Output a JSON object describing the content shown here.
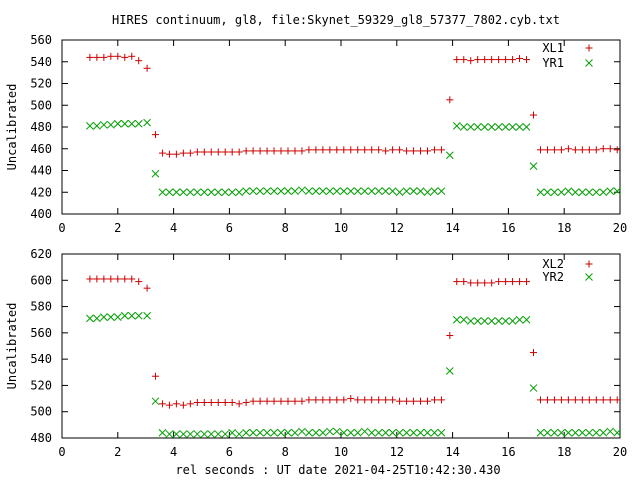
{
  "figure": {
    "title": "HIRES continuum, gl8, file:Skynet_59329_gl8_57377_7802.cyb.txt",
    "xlabel": "rel seconds : UT date 2021-04-25T10:42:30.430"
  },
  "colors": {
    "plus": "#cc0000",
    "cross": "#00a000",
    "axis": "#000000"
  },
  "chart_data": [
    {
      "type": "scatter",
      "ylabel": "Uncalibrated",
      "xlim": [
        0,
        20
      ],
      "ylim": [
        400,
        560
      ],
      "xticks": [
        "0",
        "2",
        "4",
        "6",
        "8",
        "10",
        "12",
        "14",
        "16",
        "18",
        "20"
      ],
      "yticks": [
        "400",
        "420",
        "440",
        "460",
        "480",
        "500",
        "520",
        "540",
        "560"
      ],
      "legend_position": "top-right",
      "series": [
        {
          "name": "XL1",
          "marker": "plus",
          "x": [
            1.0,
            1.25,
            1.5,
            1.75,
            2.0,
            2.25,
            2.5,
            2.75,
            3.05,
            3.35,
            3.6,
            3.85,
            4.1,
            4.35,
            4.6,
            4.85,
            5.1,
            5.35,
            5.6,
            5.85,
            6.1,
            6.35,
            6.6,
            6.85,
            7.1,
            7.35,
            7.6,
            7.85,
            8.1,
            8.35,
            8.6,
            8.85,
            9.1,
            9.35,
            9.6,
            9.85,
            10.1,
            10.35,
            10.6,
            10.85,
            11.1,
            11.35,
            11.6,
            11.85,
            12.1,
            12.35,
            12.6,
            12.85,
            13.1,
            13.35,
            13.6,
            13.9,
            14.15,
            14.4,
            14.65,
            14.9,
            15.15,
            15.4,
            15.65,
            15.9,
            16.15,
            16.4,
            16.65,
            16.9,
            17.15,
            17.4,
            17.65,
            17.9,
            18.15,
            18.4,
            18.65,
            18.9,
            19.15,
            19.4,
            19.65,
            19.9
          ],
          "y": [
            544,
            544,
            544,
            545,
            545,
            544,
            545,
            541,
            534,
            473,
            456,
            455,
            455,
            456,
            456,
            457,
            457,
            457,
            457,
            457,
            457,
            457,
            458,
            458,
            458,
            458,
            458,
            458,
            458,
            458,
            458,
            459,
            459,
            459,
            459,
            459,
            459,
            459,
            459,
            459,
            459,
            459,
            458,
            459,
            459,
            458,
            458,
            458,
            458,
            459,
            459,
            505,
            542,
            542,
            541,
            542,
            542,
            542,
            542,
            542,
            542,
            543,
            542,
            491,
            459,
            459,
            459,
            459,
            460,
            459,
            459,
            459,
            459,
            460,
            460,
            459
          ]
        },
        {
          "name": "YR1",
          "marker": "cross",
          "x": [
            1.0,
            1.25,
            1.5,
            1.75,
            2.0,
            2.25,
            2.5,
            2.75,
            3.05,
            3.35,
            3.6,
            3.85,
            4.1,
            4.35,
            4.6,
            4.85,
            5.1,
            5.35,
            5.6,
            5.85,
            6.1,
            6.35,
            6.6,
            6.85,
            7.1,
            7.35,
            7.6,
            7.85,
            8.1,
            8.35,
            8.6,
            8.85,
            9.1,
            9.35,
            9.6,
            9.85,
            10.1,
            10.35,
            10.6,
            10.85,
            11.1,
            11.35,
            11.6,
            11.85,
            12.1,
            12.35,
            12.6,
            12.85,
            13.1,
            13.35,
            13.6,
            13.9,
            14.15,
            14.4,
            14.65,
            14.9,
            15.15,
            15.4,
            15.65,
            15.9,
            16.15,
            16.4,
            16.65,
            16.9,
            17.15,
            17.4,
            17.65,
            17.9,
            18.15,
            18.4,
            18.65,
            18.9,
            19.15,
            19.4,
            19.65,
            19.9
          ],
          "y": [
            481,
            481,
            482,
            482,
            483,
            483,
            483,
            483,
            484,
            437,
            420,
            420,
            420,
            420,
            420,
            420,
            420,
            420,
            420,
            420,
            420,
            420,
            421,
            421,
            421,
            421,
            421,
            421,
            421,
            421,
            422,
            421,
            421,
            421,
            421,
            421,
            421,
            421,
            421,
            421,
            421,
            421,
            421,
            421,
            420,
            421,
            421,
            421,
            420,
            421,
            421,
            454,
            481,
            480,
            480,
            480,
            480,
            480,
            480,
            480,
            480,
            480,
            480,
            444,
            420,
            420,
            420,
            420,
            421,
            420,
            420,
            420,
            420,
            420,
            421,
            421
          ]
        }
      ]
    },
    {
      "type": "scatter",
      "ylabel": "Uncalibrated",
      "xlabel": "rel seconds : UT date 2021-04-25T10:42:30.430",
      "xlim": [
        0,
        20
      ],
      "ylim": [
        480,
        620
      ],
      "xticks": [
        "0",
        "2",
        "4",
        "6",
        "8",
        "10",
        "12",
        "14",
        "16",
        "18",
        "20"
      ],
      "yticks": [
        "480",
        "500",
        "520",
        "540",
        "560",
        "580",
        "600",
        "620"
      ],
      "legend_position": "top-right",
      "series": [
        {
          "name": "XL2",
          "marker": "plus",
          "x": [
            1.0,
            1.25,
            1.5,
            1.75,
            2.0,
            2.25,
            2.5,
            2.75,
            3.05,
            3.35,
            3.6,
            3.85,
            4.1,
            4.35,
            4.6,
            4.85,
            5.1,
            5.35,
            5.6,
            5.85,
            6.1,
            6.35,
            6.6,
            6.85,
            7.1,
            7.35,
            7.6,
            7.85,
            8.1,
            8.35,
            8.6,
            8.85,
            9.1,
            9.35,
            9.6,
            9.85,
            10.1,
            10.35,
            10.6,
            10.85,
            11.1,
            11.35,
            11.6,
            11.85,
            12.1,
            12.35,
            12.6,
            12.85,
            13.1,
            13.35,
            13.6,
            13.9,
            14.15,
            14.4,
            14.65,
            14.9,
            15.15,
            15.4,
            15.65,
            15.9,
            16.15,
            16.4,
            16.65,
            16.9,
            17.15,
            17.4,
            17.65,
            17.9,
            18.15,
            18.4,
            18.65,
            18.9,
            19.15,
            19.4,
            19.65,
            19.9
          ],
          "y": [
            601,
            601,
            601,
            601,
            601,
            601,
            601,
            599,
            594,
            527,
            506,
            505,
            506,
            505,
            506,
            507,
            507,
            507,
            507,
            507,
            507,
            506,
            507,
            508,
            508,
            508,
            508,
            508,
            508,
            508,
            508,
            509,
            509,
            509,
            509,
            509,
            509,
            510,
            509,
            509,
            509,
            509,
            509,
            509,
            508,
            508,
            508,
            508,
            508,
            509,
            509,
            558,
            599,
            599,
            598,
            598,
            598,
            598,
            599,
            599,
            599,
            599,
            599,
            545,
            509,
            509,
            509,
            509,
            509,
            509,
            509,
            509,
            509,
            509,
            509,
            509
          ]
        },
        {
          "name": "YR2",
          "marker": "cross",
          "x": [
            1.0,
            1.25,
            1.5,
            1.75,
            2.0,
            2.25,
            2.5,
            2.75,
            3.05,
            3.35,
            3.6,
            3.85,
            4.1,
            4.35,
            4.6,
            4.85,
            5.1,
            5.35,
            5.6,
            5.85,
            6.1,
            6.35,
            6.6,
            6.85,
            7.1,
            7.35,
            7.6,
            7.85,
            8.1,
            8.35,
            8.6,
            8.85,
            9.1,
            9.35,
            9.6,
            9.85,
            10.1,
            10.35,
            10.6,
            10.85,
            11.1,
            11.35,
            11.6,
            11.85,
            12.1,
            12.35,
            12.6,
            12.85,
            13.1,
            13.35,
            13.6,
            13.9,
            14.15,
            14.4,
            14.65,
            14.9,
            15.15,
            15.4,
            15.65,
            15.9,
            16.15,
            16.4,
            16.65,
            16.9,
            17.15,
            17.4,
            17.65,
            17.9,
            18.15,
            18.4,
            18.65,
            18.9,
            19.15,
            19.4,
            19.65,
            19.9
          ],
          "y": [
            571,
            571,
            572,
            572,
            572,
            573,
            573,
            573,
            573,
            508,
            484,
            483,
            483,
            483,
            483,
            483,
            483,
            483,
            483,
            483,
            484,
            483,
            484,
            484,
            484,
            484,
            484,
            484,
            484,
            484,
            485,
            484,
            484,
            484,
            485,
            485,
            484,
            484,
            484,
            485,
            484,
            484,
            484,
            484,
            484,
            484,
            484,
            484,
            484,
            484,
            484,
            531,
            570,
            570,
            569,
            569,
            569,
            569,
            569,
            569,
            569,
            570,
            570,
            518,
            484,
            484,
            484,
            484,
            484,
            484,
            484,
            484,
            484,
            484,
            485,
            484
          ]
        }
      ]
    }
  ]
}
